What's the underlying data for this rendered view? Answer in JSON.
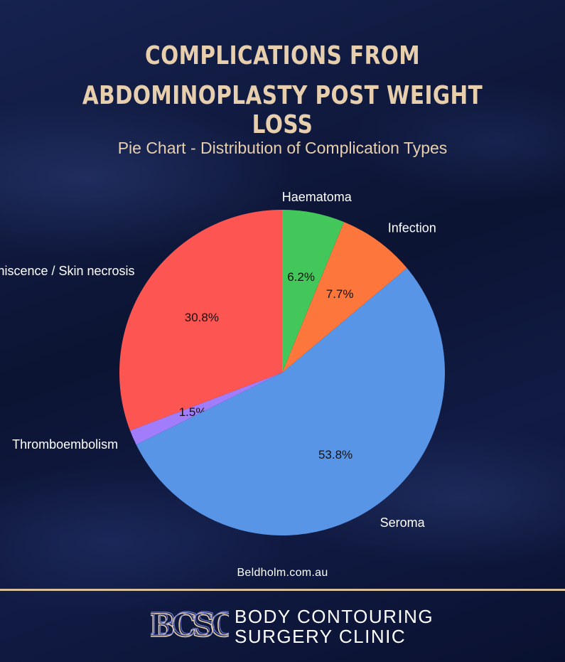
{
  "header": {
    "title_line1": "COMPLICATIONS FROM",
    "title_line2": "ABDOMINOPLASTY POST WEIGHT LOSS",
    "subtitle": "Pie Chart - Distribution of Complication Types"
  },
  "chart_data": {
    "type": "pie",
    "title": "COMPLICATIONS FROM ABDOMINOPLASTY POST WEIGHT LOSS",
    "subtitle": "Pie Chart - Distribution of Complication Types",
    "start_angle_deg": 90,
    "direction": "counterclockwise",
    "slices": [
      {
        "label": "Wound dehiscence / Skin necrosis",
        "value": 30.8,
        "pct_label": "30.8%",
        "color": "#fd5551"
      },
      {
        "label": "Thromboembolism",
        "value": 1.5,
        "pct_label": "1.5%",
        "color": "#a17cfb"
      },
      {
        "label": "Seroma",
        "value": 53.8,
        "pct_label": "53.8%",
        "color": "#5995e6"
      },
      {
        "label": "Infection",
        "value": 7.7,
        "pct_label": "7.7%",
        "color": "#fd763b"
      },
      {
        "label": "Haematoma",
        "value": 6.2,
        "pct_label": "6.2%",
        "color": "#43c75a"
      }
    ]
  },
  "footer": {
    "source": "Beldholm.com.au",
    "logo_monogram": "BCSC",
    "logo_line1": "BODY CONTOURING",
    "logo_line2": "SURGERY CLINIC"
  },
  "colors": {
    "background": "#0d1638",
    "accent_gold": "#e7cfad",
    "divider": "#d9c09c"
  }
}
